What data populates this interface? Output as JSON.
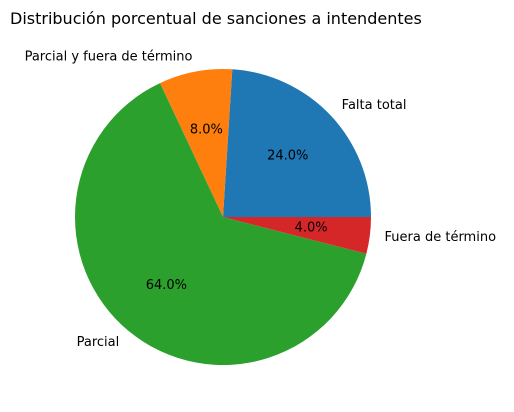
{
  "chart_data": {
    "type": "pie",
    "title": "Distribución porcentual de sanciones a intendentes",
    "slices": [
      {
        "label": "Falta total",
        "value": 24.0,
        "pct_label": "24.0%",
        "color": "#1f77b4"
      },
      {
        "label": "Parcial y fuera de término",
        "value": 8.0,
        "pct_label": "8.0%",
        "color": "#ff7f0e"
      },
      {
        "label": "Parcial",
        "value": 64.0,
        "pct_label": "64.0%",
        "color": "#2ca02c"
      },
      {
        "label": "Fuera de término",
        "value": 4.0,
        "pct_label": "4.0%",
        "color": "#d62728"
      }
    ],
    "start_angle_deg": 0,
    "direction": "counterclockwise",
    "legend": "none"
  }
}
